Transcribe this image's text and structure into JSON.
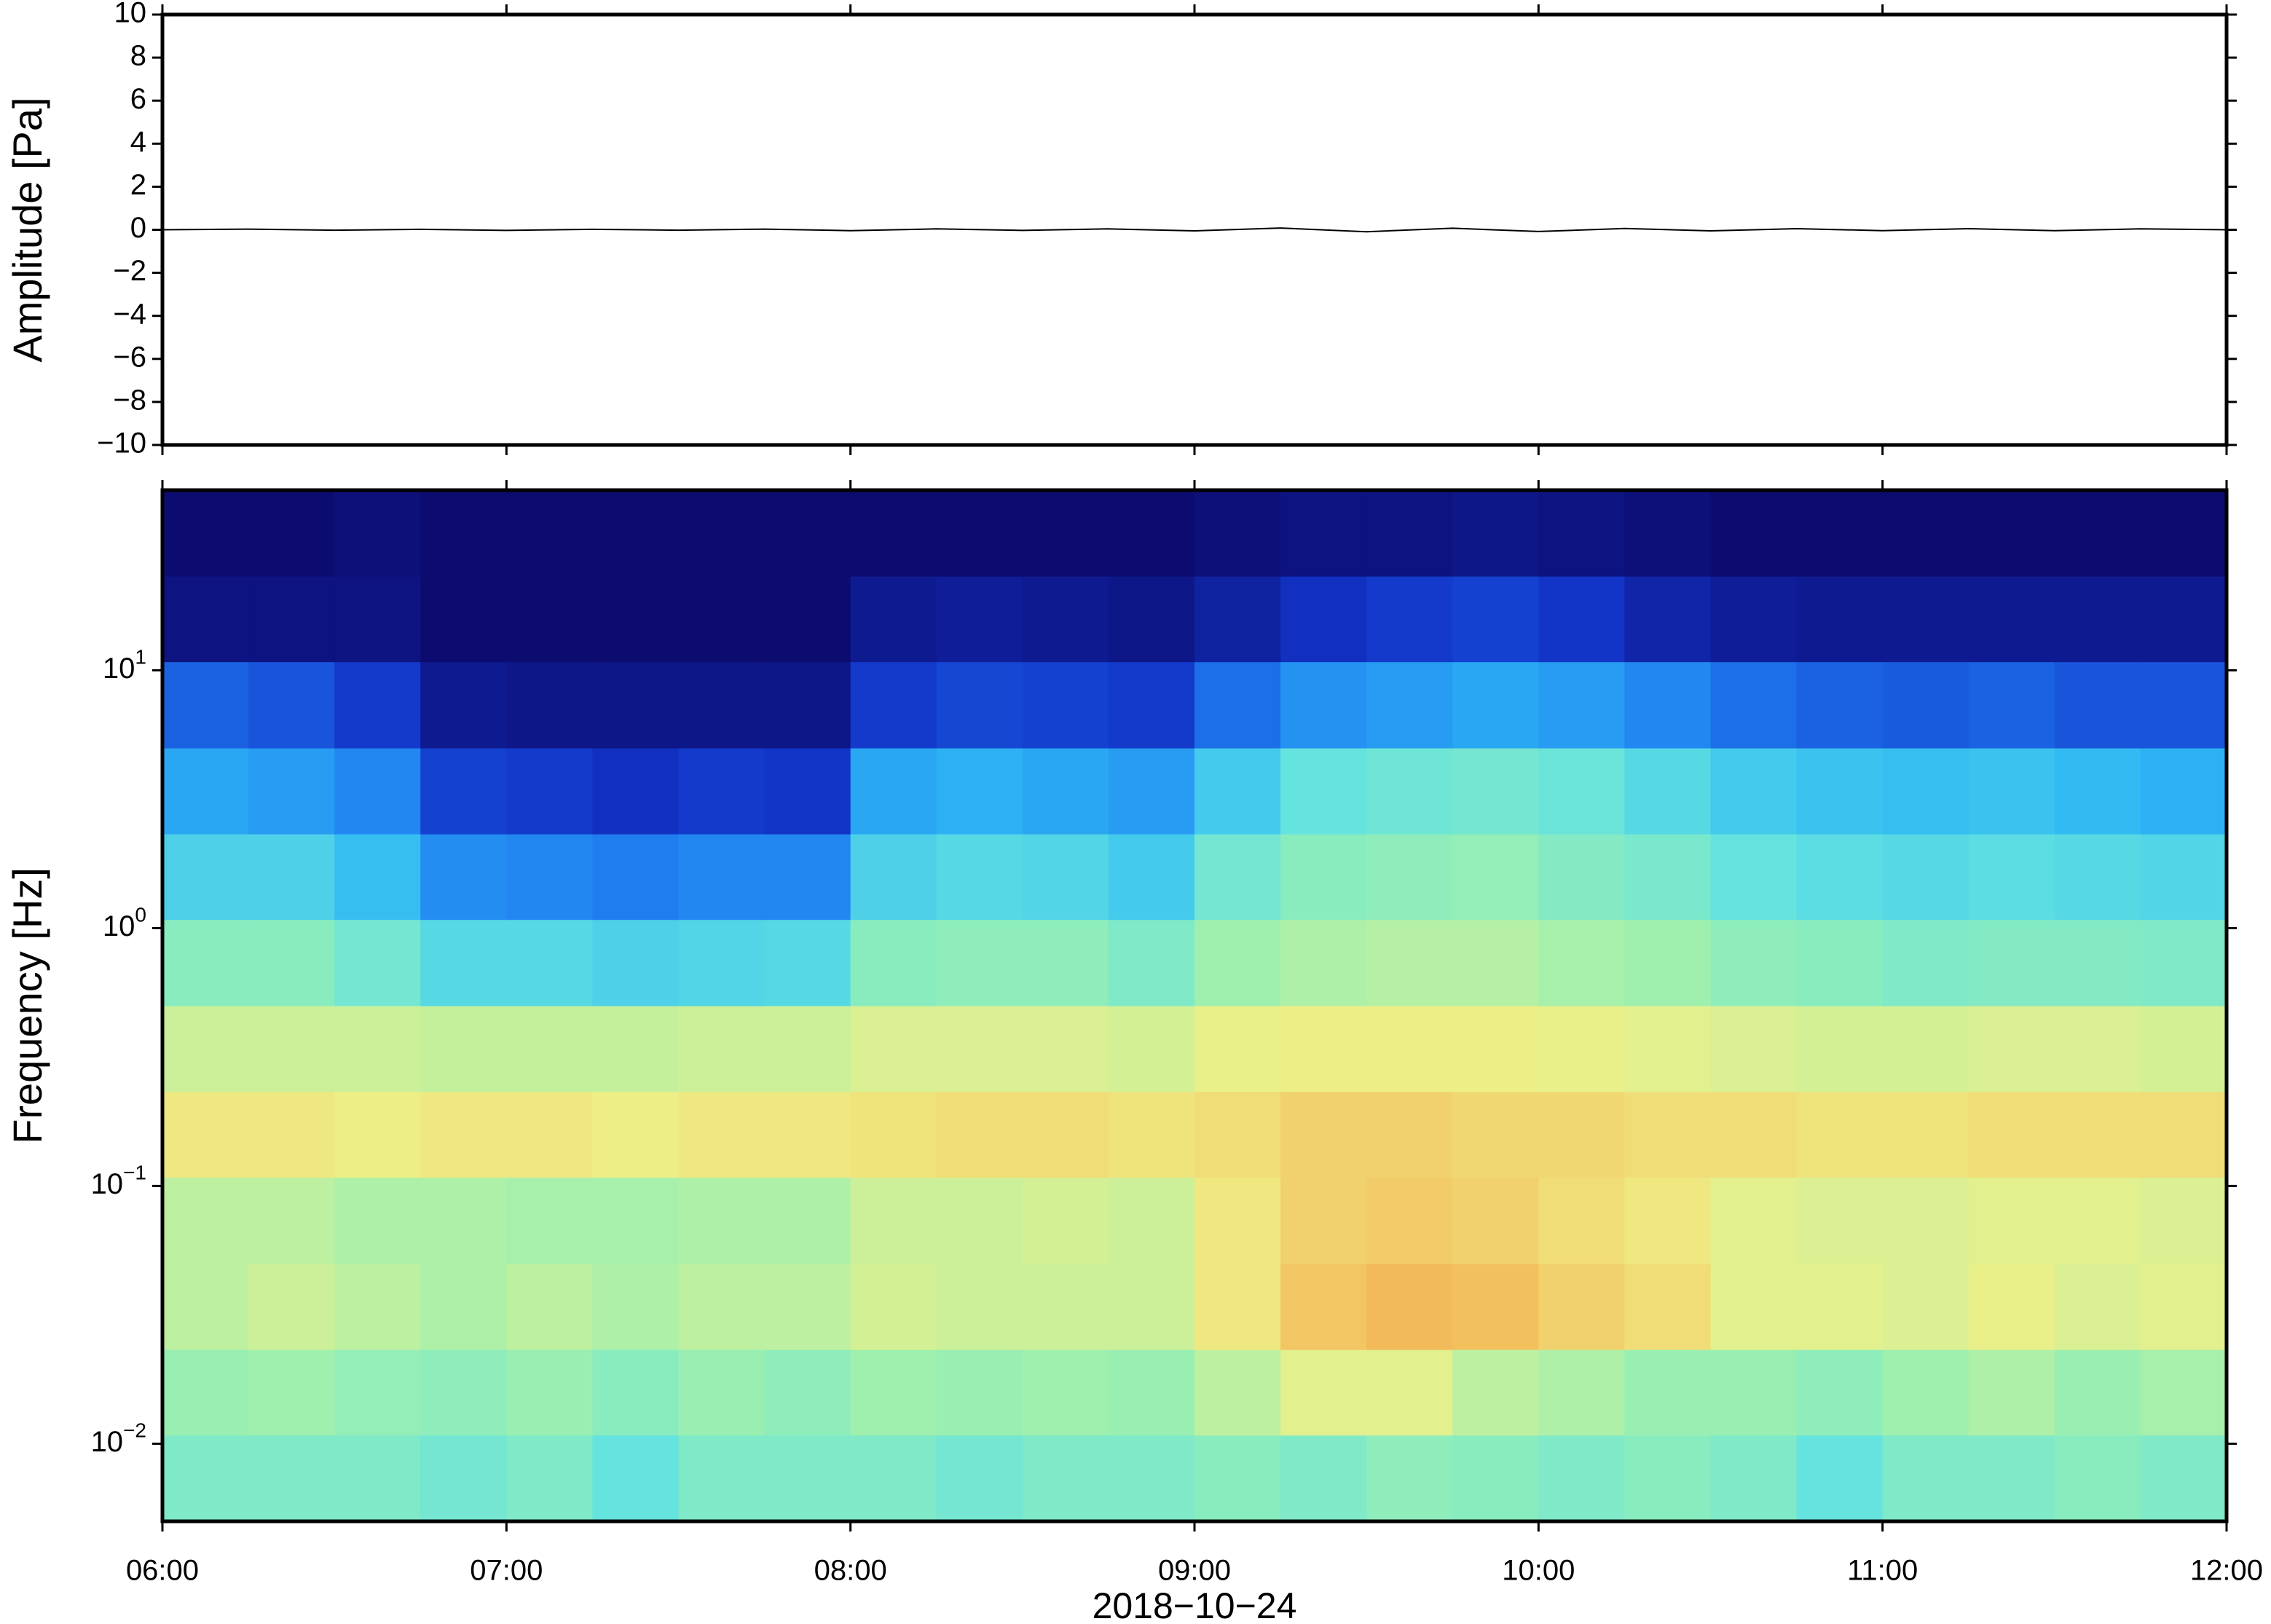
{
  "chart_data": [
    {
      "type": "line",
      "ylabel": "Amplitude [Pa]",
      "color": "#000000",
      "x": [
        6,
        6.25,
        6.5,
        6.75,
        7,
        7.25,
        7.5,
        7.75,
        8,
        8.25,
        8.5,
        8.75,
        9,
        9.25,
        9.5,
        9.75,
        10,
        10.25,
        10.5,
        10.75,
        11,
        11.25,
        11.5,
        11.75,
        12
      ],
      "values": [
        0,
        0.03,
        -0.02,
        0.02,
        -0.03,
        0.02,
        -0.02,
        0.03,
        -0.04,
        0.04,
        -0.03,
        0.04,
        -0.05,
        0.08,
        -0.09,
        0.07,
        -0.08,
        0.06,
        -0.05,
        0.05,
        -0.04,
        0.05,
        -0.04,
        0.04,
        0
      ],
      "xlim": [
        6,
        12
      ],
      "xticks": [
        6,
        7,
        8,
        9,
        10,
        11,
        12
      ],
      "ylim": [
        -10,
        10
      ],
      "yticks": [
        {
          "value": -10,
          "label": "−10"
        },
        {
          "value": -8,
          "label": "−8"
        },
        {
          "value": -6,
          "label": "−6"
        },
        {
          "value": -4,
          "label": "−4"
        },
        {
          "value": -2,
          "label": "−2"
        },
        0,
        2,
        4,
        6,
        8,
        10
      ]
    },
    {
      "type": "heatmap",
      "ylabel": "Frequency [Hz]",
      "xlabel": "2018−10−24",
      "ylog": true,
      "xlim": [
        6,
        12
      ],
      "xticks": [
        {
          "value": 6,
          "label": "06:00"
        },
        {
          "value": 7,
          "label": "07:00"
        },
        {
          "value": 8,
          "label": "08:00"
        },
        {
          "value": 9,
          "label": "09:00"
        },
        {
          "value": 10,
          "label": "10:00"
        },
        {
          "value": 11,
          "label": "11:00"
        },
        {
          "value": 12,
          "label": "12:00"
        }
      ],
      "ylim": [
        0.005,
        50
      ],
      "yticks": [
        {
          "value": 0.01,
          "label": "10",
          "exponent": "−2"
        },
        {
          "value": 0.1,
          "label": "10",
          "exponent": "−1"
        },
        {
          "value": 1,
          "label": "10",
          "exponent": "0"
        },
        {
          "value": 10,
          "label": "10",
          "exponent": "1"
        }
      ],
      "xbins": [
        6,
        6.25,
        6.5,
        6.75,
        7,
        7.25,
        7.5,
        7.75,
        8,
        8.25,
        8.5,
        8.75,
        9,
        9.25,
        9.5,
        9.75,
        10,
        10.25,
        10.5,
        10.75,
        11,
        11.25,
        11.5,
        11.75,
        12
      ],
      "ybins": [
        0.005,
        0.0108,
        0.0232,
        0.05,
        0.108,
        0.232,
        0.5,
        1.08,
        2.32,
        5,
        10.8,
        23.2,
        50
      ],
      "zlim": [
        0,
        10
      ],
      "colorscale": [
        "#0c0c70",
        "#1234c8",
        "#1f7ef0",
        "#2fb8f4",
        "#62e2e0",
        "#9cf0b0",
        "#eef088",
        "#f4b050",
        "#e06030",
        "#b01818"
      ],
      "z": [
        [
          5,
          5,
          5,
          4.8,
          5,
          4.5,
          5,
          5,
          5,
          4.8,
          5,
          5,
          5.2,
          5,
          5.3,
          5.2,
          5,
          5.2,
          5,
          4.5,
          5,
          5,
          5.2,
          5
        ],
        [
          5.5,
          5.6,
          5.4,
          5.3,
          5.5,
          5.2,
          5.5,
          5.3,
          5.6,
          5.5,
          5.6,
          5.5,
          6,
          6.5,
          6.5,
          6,
          5.8,
          5.5,
          5.5,
          5.3,
          5.6,
          5.8,
          5.5,
          5.7
        ],
        [
          6,
          6.2,
          6,
          5.8,
          6,
          5.8,
          6,
          6,
          6.3,
          6.2,
          6.2,
          6.2,
          6.8,
          7.4,
          7.6,
          7.5,
          7.2,
          7,
          6.5,
          6.5,
          6.4,
          6.6,
          6.4,
          6.5
        ],
        [
          6,
          6,
          5.8,
          5.8,
          5.7,
          5.7,
          5.8,
          5.8,
          6.2,
          6.2,
          6.3,
          6.2,
          6.8,
          7.2,
          7.3,
          7.2,
          7,
          6.8,
          6.5,
          6.4,
          6.4,
          6.5,
          6.5,
          6.4
        ],
        [
          6.8,
          6.8,
          6.7,
          6.8,
          6.8,
          6.7,
          6.8,
          6.8,
          6.9,
          7,
          7,
          6.9,
          7,
          7.2,
          7.2,
          7.1,
          7.1,
          7,
          7,
          6.9,
          6.9,
          7,
          7,
          7
        ],
        [
          6.2,
          6.2,
          6.2,
          6.1,
          6.1,
          6.1,
          6.2,
          6.2,
          6.4,
          6.4,
          6.4,
          6.3,
          6.6,
          6.7,
          6.7,
          6.7,
          6.6,
          6.5,
          6.4,
          6.3,
          6.3,
          6.4,
          6.4,
          6.3
        ],
        [
          5.2,
          5.2,
          4.8,
          4.2,
          4.2,
          4,
          4.1,
          4.2,
          5.2,
          5.3,
          5.3,
          5,
          5.6,
          5.8,
          5.9,
          5.9,
          5.7,
          5.6,
          5.3,
          5.2,
          5,
          5.1,
          5.1,
          5
        ],
        [
          4,
          4,
          3.5,
          2.5,
          2.4,
          2.2,
          2.4,
          2.4,
          4,
          4.2,
          4.1,
          3.8,
          4.8,
          5.2,
          5.3,
          5.4,
          5.1,
          4.9,
          4.5,
          4.3,
          4.2,
          4.3,
          4.2,
          4.1
        ],
        [
          3,
          2.8,
          2.4,
          1.3,
          1.2,
          1,
          1.2,
          1.1,
          3,
          3.2,
          3,
          2.8,
          3.8,
          4.5,
          4.7,
          4.8,
          4.6,
          4.2,
          3.8,
          3.6,
          3.5,
          3.6,
          3.4,
          3.2
        ],
        [
          1.8,
          1.6,
          1.2,
          0.4,
          0.3,
          0.3,
          0.3,
          0.3,
          1.2,
          1.4,
          1.3,
          1.2,
          2,
          2.6,
          2.8,
          3,
          2.8,
          2.4,
          2,
          1.8,
          1.7,
          1.8,
          1.6,
          1.6
        ],
        [
          0.2,
          0.2,
          0.2,
          0,
          0,
          0,
          0,
          0,
          0.4,
          0.5,
          0.4,
          0.3,
          0.6,
          1,
          1.2,
          1.3,
          1.1,
          0.7,
          0.5,
          0.4,
          0.4,
          0.4,
          0.4,
          0.4
        ],
        [
          0,
          0,
          0.1,
          0,
          0,
          0,
          0,
          0,
          0,
          0,
          0,
          0,
          0.1,
          0.2,
          0.2,
          0.3,
          0.2,
          0.1,
          0,
          0,
          0,
          0,
          0,
          0
        ]
      ]
    }
  ]
}
